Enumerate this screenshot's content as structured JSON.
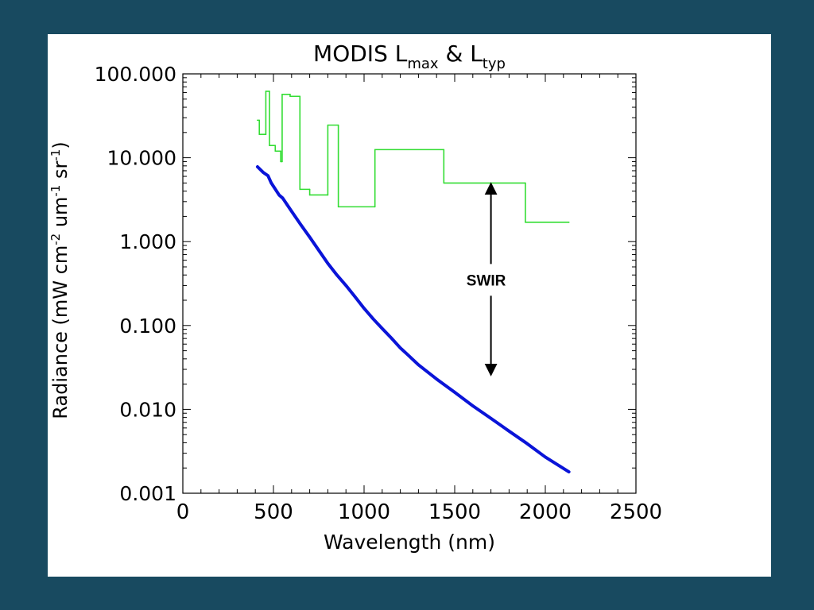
{
  "colors": {
    "background": "#184a60",
    "panel": "#ffffff",
    "lmax_series": "#33dd33",
    "ltyp_series": "#0a14d8",
    "axis": "#000000"
  },
  "chart_data": {
    "type": "line",
    "title": {
      "text": "MODIS L",
      "sub1": "max",
      "mid": " & L",
      "sub2": "typ"
    },
    "xlabel": "Wavelength (nm)",
    "ylabel": {
      "p1": "Radiance (mW cm",
      "e1": "-2",
      "p2": " um",
      "e2": "-1",
      "p3": " sr",
      "e3": "-1",
      "p4": ")"
    },
    "xlim": [
      0,
      2500
    ],
    "ylim": [
      0.001,
      100
    ],
    "y_scale": "log",
    "x_ticks": [
      0,
      500,
      1000,
      1500,
      2000,
      2500
    ],
    "x_tick_labels": [
      "0",
      "500",
      "1000",
      "1500",
      "2000",
      "2500"
    ],
    "y_ticks": [
      0.001,
      0.01,
      0.1,
      1,
      10,
      100
    ],
    "y_tick_labels": [
      "0.001",
      "0.010",
      "0.100",
      "1.000",
      "10.000",
      "100.000"
    ],
    "series": [
      {
        "key": "lmax",
        "style": "step",
        "points": [
          [
            412,
            28
          ],
          [
            422,
            28
          ],
          [
            422,
            19
          ],
          [
            458,
            19
          ],
          [
            458,
            62
          ],
          [
            478,
            62
          ],
          [
            478,
            14
          ],
          [
            510,
            14
          ],
          [
            510,
            12
          ],
          [
            540,
            12
          ],
          [
            540,
            9
          ],
          [
            548,
            9
          ],
          [
            548,
            57
          ],
          [
            592,
            57
          ],
          [
            592,
            54
          ],
          [
            646,
            54
          ],
          [
            646,
            4.2
          ],
          [
            700,
            4.2
          ],
          [
            700,
            3.6
          ],
          [
            800,
            3.6
          ],
          [
            800,
            24.5
          ],
          [
            858,
            24.5
          ],
          [
            858,
            2.6
          ],
          [
            1060,
            2.6
          ],
          [
            1060,
            12.5
          ],
          [
            1440,
            12.5
          ],
          [
            1440,
            5.0
          ],
          [
            1890,
            5.0
          ],
          [
            1890,
            1.7
          ],
          [
            2130,
            1.7
          ]
        ]
      },
      {
        "key": "ltyp",
        "style": "line",
        "points": [
          [
            412,
            7.8
          ],
          [
            443,
            6.7
          ],
          [
            470,
            6.1
          ],
          [
            488,
            5.0
          ],
          [
            531,
            3.6
          ],
          [
            551,
            3.3
          ],
          [
            600,
            2.3
          ],
          [
            650,
            1.6
          ],
          [
            700,
            1.13
          ],
          [
            748,
            0.8
          ],
          [
            800,
            0.55
          ],
          [
            850,
            0.4
          ],
          [
            900,
            0.3
          ],
          [
            950,
            0.22
          ],
          [
            1000,
            0.16
          ],
          [
            1050,
            0.12
          ],
          [
            1100,
            0.092
          ],
          [
            1150,
            0.071
          ],
          [
            1200,
            0.054
          ],
          [
            1240,
            0.045
          ],
          [
            1300,
            0.034
          ],
          [
            1400,
            0.023
          ],
          [
            1500,
            0.016
          ],
          [
            1600,
            0.011
          ],
          [
            1700,
            0.0078
          ],
          [
            1800,
            0.0055
          ],
          [
            1900,
            0.0039
          ],
          [
            2000,
            0.0027
          ],
          [
            2130,
            0.0018
          ]
        ]
      }
    ],
    "annotations": [
      {
        "text": "SWIR",
        "x": 1700,
        "y_top": 4.7,
        "y_bottom": 0.027,
        "label_y": 0.35
      }
    ]
  }
}
